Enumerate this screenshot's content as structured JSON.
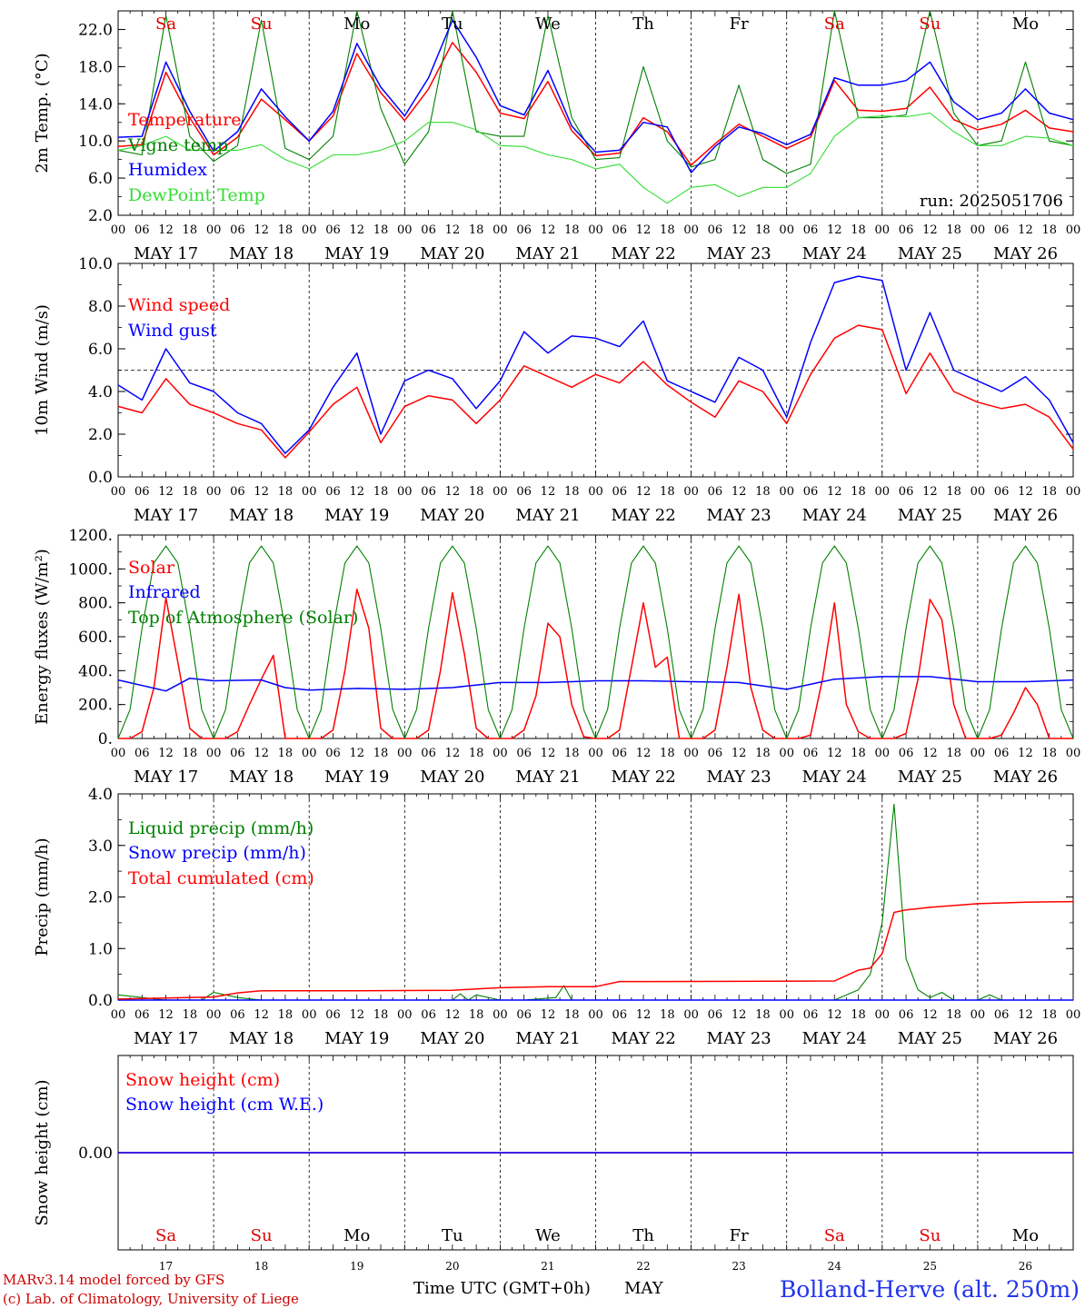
{
  "days": {
    "week_labels": [
      "Sa",
      "Su",
      "Mo",
      "Tu",
      "We",
      "Th",
      "Fr",
      "Sa",
      "Su",
      "Mo"
    ],
    "week_colors": [
      "#e00000",
      "#e00000",
      "#000000",
      "#000000",
      "#000000",
      "#000000",
      "#000000",
      "#e00000",
      "#e00000",
      "#000000"
    ],
    "dates": [
      "MAY 17",
      "MAY 18",
      "MAY 19",
      "MAY 20",
      "MAY 21",
      "MAY 22",
      "MAY 23",
      "MAY 24",
      "MAY 25",
      "MAY 26"
    ],
    "bottom_numbers": [
      "17",
      "18",
      "19",
      "20",
      "21",
      "22",
      "23",
      "24",
      "25",
      "26"
    ],
    "hour_ticks": [
      "00",
      "06",
      "12",
      "18"
    ],
    "end_tick": "00"
  },
  "footer": {
    "credit_line1": "MARv3.14 model forced by GFS",
    "credit_line2": "(c) Lab. of Climatology, University of Liege",
    "time_axis": "Time UTC (GMT+0h)",
    "month": "MAY",
    "station": "Bolland-Herve (alt. 250m)"
  },
  "colors": {
    "red": "#ff0000",
    "green": "#008000",
    "blue": "#0000ff",
    "lightgreen": "#33dd33",
    "credit": "#cc0000",
    "station": "#2233ee"
  },
  "chart_data": [
    {
      "type": "line",
      "ylabel": "2m Temp. (°C)",
      "ylim": [
        2,
        24
      ],
      "yticks": [
        "2.0",
        "6.0",
        "10.0",
        "14.0",
        "18.0",
        "22.0"
      ],
      "annotation": "run: 2025051706",
      "x_unit": "hours since 00 UTC MAY 17",
      "series": [
        {
          "name": "Temperature",
          "color": "red",
          "x": [
            0,
            6,
            12,
            18,
            24,
            30,
            36,
            42,
            48,
            54,
            60,
            66,
            72,
            78,
            84,
            90,
            96,
            102,
            108,
            114,
            120,
            126,
            132,
            138,
            144,
            150,
            156,
            162,
            168,
            174,
            180,
            186,
            192,
            198,
            204,
            210,
            216,
            222,
            228,
            234,
            240
          ],
          "values": [
            9.4,
            9.6,
            17.4,
            12.5,
            8.5,
            10.4,
            14.5,
            12.3,
            10.0,
            12.7,
            19.4,
            15.2,
            12.2,
            15.6,
            20.6,
            17.4,
            13.0,
            12.4,
            16.4,
            11.1,
            8.4,
            8.7,
            12.5,
            11.0,
            7.4,
            9.7,
            11.8,
            10.5,
            9.2,
            10.4,
            16.5,
            13.3,
            13.2,
            13.5,
            15.8,
            12.3,
            11.2,
            11.8,
            13.3,
            11.4,
            11.0
          ]
        },
        {
          "name": "Vigne temp",
          "color": "green",
          "x": [
            0,
            6,
            12,
            18,
            24,
            30,
            36,
            42,
            48,
            54,
            60,
            66,
            72,
            78,
            84,
            90,
            96,
            102,
            108,
            114,
            120,
            126,
            132,
            138,
            144,
            150,
            156,
            162,
            168,
            174,
            180,
            186,
            192,
            198,
            204,
            210,
            216,
            222,
            228,
            234,
            240
          ],
          "values": [
            9.0,
            8.5,
            23.5,
            10.5,
            7.8,
            9.5,
            23.0,
            9.2,
            8.0,
            10.5,
            24.0,
            13.5,
            7.5,
            11.0,
            24.0,
            11.0,
            10.5,
            10.5,
            23.5,
            12.5,
            8.0,
            8.2,
            18.0,
            10.0,
            7.2,
            8.0,
            16.0,
            8.0,
            6.5,
            7.5,
            24.0,
            12.5,
            12.5,
            12.8,
            24.0,
            13.0,
            9.5,
            10.0,
            18.5,
            10.0,
            9.5
          ]
        },
        {
          "name": "Humidex",
          "color": "blue",
          "x": [
            0,
            6,
            12,
            18,
            24,
            30,
            36,
            42,
            48,
            54,
            60,
            66,
            72,
            78,
            84,
            90,
            96,
            102,
            108,
            114,
            120,
            126,
            132,
            138,
            144,
            150,
            156,
            162,
            168,
            174,
            180,
            186,
            192,
            198,
            204,
            210,
            216,
            222,
            228,
            234,
            240
          ],
          "values": [
            10.4,
            10.5,
            18.5,
            13.2,
            8.9,
            11.0,
            15.6,
            12.6,
            10.0,
            13.2,
            20.5,
            15.8,
            12.7,
            16.8,
            23.0,
            19.0,
            13.8,
            12.8,
            17.6,
            11.6,
            8.8,
            9.0,
            12.0,
            11.5,
            6.6,
            9.4,
            11.5,
            10.8,
            9.6,
            10.7,
            16.8,
            16.0,
            16.0,
            16.5,
            18.5,
            14.2,
            12.3,
            13.0,
            15.6,
            13.0,
            12.3
          ]
        },
        {
          "name": "DewPoint Temp",
          "color": "lightgreen",
          "x": [
            0,
            6,
            12,
            18,
            24,
            30,
            36,
            42,
            48,
            54,
            60,
            66,
            72,
            78,
            84,
            90,
            96,
            102,
            108,
            114,
            120,
            126,
            132,
            138,
            144,
            150,
            156,
            162,
            168,
            174,
            180,
            186,
            192,
            198,
            204,
            210,
            216,
            222,
            228,
            234,
            240
          ],
          "values": [
            9.0,
            9.5,
            10.5,
            9.0,
            9.0,
            9.0,
            9.6,
            8.0,
            7.0,
            8.5,
            8.5,
            9.0,
            10.0,
            12.0,
            12.0,
            11.2,
            9.5,
            9.4,
            8.5,
            8.0,
            7.0,
            7.5,
            5.0,
            3.3,
            5.0,
            5.3,
            4.0,
            5.0,
            5.0,
            6.5,
            10.5,
            12.5,
            12.7,
            12.6,
            13.0,
            11.0,
            9.5,
            9.5,
            10.5,
            10.3,
            9.5
          ]
        }
      ]
    },
    {
      "type": "line",
      "ylabel": "10m Wind (m/s)",
      "ylim": [
        0,
        10
      ],
      "yticks": [
        "0.0",
        "2.0",
        "4.0",
        "6.0",
        "8.0",
        "10.0"
      ],
      "reference_line": 5,
      "x_unit": "hours since 00 UTC MAY 17",
      "series": [
        {
          "name": "Wind speed",
          "color": "red",
          "x": [
            0,
            6,
            12,
            18,
            24,
            30,
            36,
            42,
            48,
            54,
            60,
            66,
            72,
            78,
            84,
            90,
            96,
            102,
            108,
            114,
            120,
            126,
            132,
            138,
            144,
            150,
            156,
            162,
            168,
            174,
            180,
            186,
            192,
            198,
            204,
            210,
            216,
            222,
            228,
            234,
            240
          ],
          "values": [
            3.3,
            3.0,
            4.6,
            3.4,
            3.0,
            2.5,
            2.2,
            0.9,
            2.1,
            3.4,
            4.2,
            1.6,
            3.3,
            3.8,
            3.6,
            2.5,
            3.6,
            5.2,
            4.7,
            4.2,
            4.8,
            4.4,
            5.4,
            4.3,
            3.5,
            2.8,
            4.5,
            4.0,
            2.5,
            4.8,
            6.5,
            7.1,
            6.9,
            3.9,
            5.8,
            4.0,
            3.5,
            3.2,
            3.4,
            2.8,
            1.3
          ]
        },
        {
          "name": "Wind gust",
          "color": "blue",
          "x": [
            0,
            6,
            12,
            18,
            24,
            30,
            36,
            42,
            48,
            54,
            60,
            66,
            72,
            78,
            84,
            90,
            96,
            102,
            108,
            114,
            120,
            126,
            132,
            138,
            144,
            150,
            156,
            162,
            168,
            174,
            180,
            186,
            192,
            198,
            204,
            210,
            216,
            222,
            228,
            234,
            240
          ],
          "values": [
            4.3,
            3.6,
            6.0,
            4.4,
            4.0,
            3.0,
            2.5,
            1.1,
            2.2,
            4.2,
            5.8,
            2.0,
            4.5,
            5.0,
            4.6,
            3.2,
            4.5,
            6.8,
            5.8,
            6.6,
            6.5,
            6.1,
            7.3,
            4.5,
            4.0,
            3.5,
            5.6,
            5.0,
            2.8,
            6.3,
            9.1,
            9.4,
            9.2,
            5.0,
            7.7,
            5.0,
            4.5,
            4.0,
            4.7,
            3.6,
            1.6
          ]
        }
      ]
    },
    {
      "type": "line",
      "ylabel": "Energy fluxes (W/m²)",
      "ylim": [
        0,
        1200
      ],
      "yticks": [
        "0.",
        "200.",
        "400.",
        "600.",
        "800.",
        "1000.",
        "1200."
      ],
      "x_unit": "hours since 00 UTC MAY 17",
      "series": [
        {
          "name": "Solar",
          "color": "red",
          "x": [
            0,
            3,
            6,
            9,
            12,
            15,
            18,
            21,
            24,
            27,
            30,
            33,
            36,
            39,
            42,
            45,
            48,
            51,
            54,
            57,
            60,
            63,
            66,
            69,
            72,
            75,
            78,
            81,
            84,
            87,
            90,
            93,
            96,
            99,
            102,
            105,
            108,
            111,
            114,
            117,
            120,
            123,
            126,
            129,
            132,
            135,
            138,
            141,
            144,
            147,
            150,
            153,
            156,
            159,
            162,
            165,
            168,
            171,
            174,
            177,
            180,
            183,
            186,
            189,
            192,
            195,
            198,
            201,
            204,
            207,
            210,
            213,
            216,
            219,
            222,
            225,
            228,
            231,
            234,
            237,
            240
          ],
          "values": [
            0,
            0,
            40,
            300,
            830,
            450,
            60,
            0,
            0,
            0,
            40,
            200,
            350,
            490,
            0,
            0,
            0,
            0,
            50,
            400,
            880,
            650,
            60,
            0,
            0,
            0,
            50,
            400,
            860,
            500,
            60,
            0,
            0,
            0,
            50,
            250,
            680,
            600,
            200,
            10,
            0,
            0,
            50,
            420,
            800,
            420,
            480,
            0,
            0,
            0,
            50,
            420,
            850,
            300,
            50,
            0,
            0,
            0,
            20,
            350,
            800,
            200,
            40,
            0,
            0,
            0,
            30,
            350,
            820,
            700,
            200,
            0,
            0,
            0,
            20,
            150,
            300,
            200,
            0,
            0,
            0
          ]
        },
        {
          "name": "Infrared",
          "color": "blue",
          "x": [
            0,
            12,
            18,
            24,
            36,
            42,
            48,
            60,
            72,
            84,
            96,
            108,
            120,
            132,
            144,
            156,
            168,
            180,
            192,
            204,
            216,
            228,
            240
          ],
          "values": [
            345,
            280,
            355,
            340,
            345,
            300,
            285,
            295,
            290,
            300,
            330,
            330,
            340,
            340,
            335,
            330,
            290,
            350,
            365,
            365,
            335,
            335,
            345
          ]
        },
        {
          "name": "Top of Atmosphere (Solar)",
          "color": "green",
          "x": [
            0,
            3,
            6,
            9,
            12,
            15,
            18,
            21,
            24
          ],
          "values": [
            0,
            170,
            650,
            1035,
            1135,
            1035,
            650,
            170,
            0
          ],
          "repeat_daily": true
        }
      ]
    },
    {
      "type": "line",
      "ylabel": "Precip (mm/h)",
      "ylim": [
        0,
        4
      ],
      "yticks": [
        "0.0",
        "1.0",
        "2.0",
        "3.0",
        "4.0"
      ],
      "x_unit": "hours since 00 UTC MAY 17",
      "series": [
        {
          "name": "Liquid precip (mm/h)",
          "color": "green",
          "x": [
            0,
            12,
            21,
            24,
            27,
            30,
            36,
            84,
            86,
            88,
            90,
            96,
            102,
            110,
            112,
            114,
            120,
            180,
            186,
            189,
            192,
            195,
            198,
            201,
            204,
            207,
            210,
            216,
            219,
            222,
            228,
            240
          ],
          "values": [
            0.1,
            0,
            0,
            0.15,
            0.1,
            0.05,
            0,
            0,
            0.12,
            0,
            0.1,
            0,
            0,
            0.05,
            0.28,
            0,
            0,
            0,
            0.2,
            0.5,
            1.5,
            3.8,
            0.8,
            0.2,
            0.05,
            0.15,
            0,
            0,
            0.1,
            0,
            0,
            0
          ]
        },
        {
          "name": "Snow precip (mm/h)",
          "color": "blue",
          "x": [
            0,
            240
          ],
          "values": [
            0,
            0
          ]
        },
        {
          "name": "Total cumulated (cm)",
          "color": "red",
          "x": [
            0,
            24,
            30,
            36,
            60,
            84,
            96,
            108,
            120,
            126,
            132,
            180,
            186,
            189,
            192,
            195,
            198,
            204,
            216,
            228,
            240
          ],
          "values": [
            0.02,
            0.06,
            0.14,
            0.18,
            0.18,
            0.19,
            0.24,
            0.26,
            0.26,
            0.36,
            0.36,
            0.37,
            0.58,
            0.62,
            0.9,
            1.7,
            1.75,
            1.8,
            1.87,
            1.9,
            1.91
          ]
        }
      ]
    },
    {
      "type": "line",
      "ylabel": "Snow height (cm)",
      "ytick": "0.00",
      "series": [
        {
          "name": "Snow height (cm)",
          "color": "red",
          "x": [
            0,
            240
          ],
          "values": [
            0,
            0
          ]
        },
        {
          "name": "Snow height (cm W.E.)",
          "color": "blue",
          "x": [
            0,
            240
          ],
          "values": [
            0,
            0
          ]
        }
      ]
    }
  ]
}
